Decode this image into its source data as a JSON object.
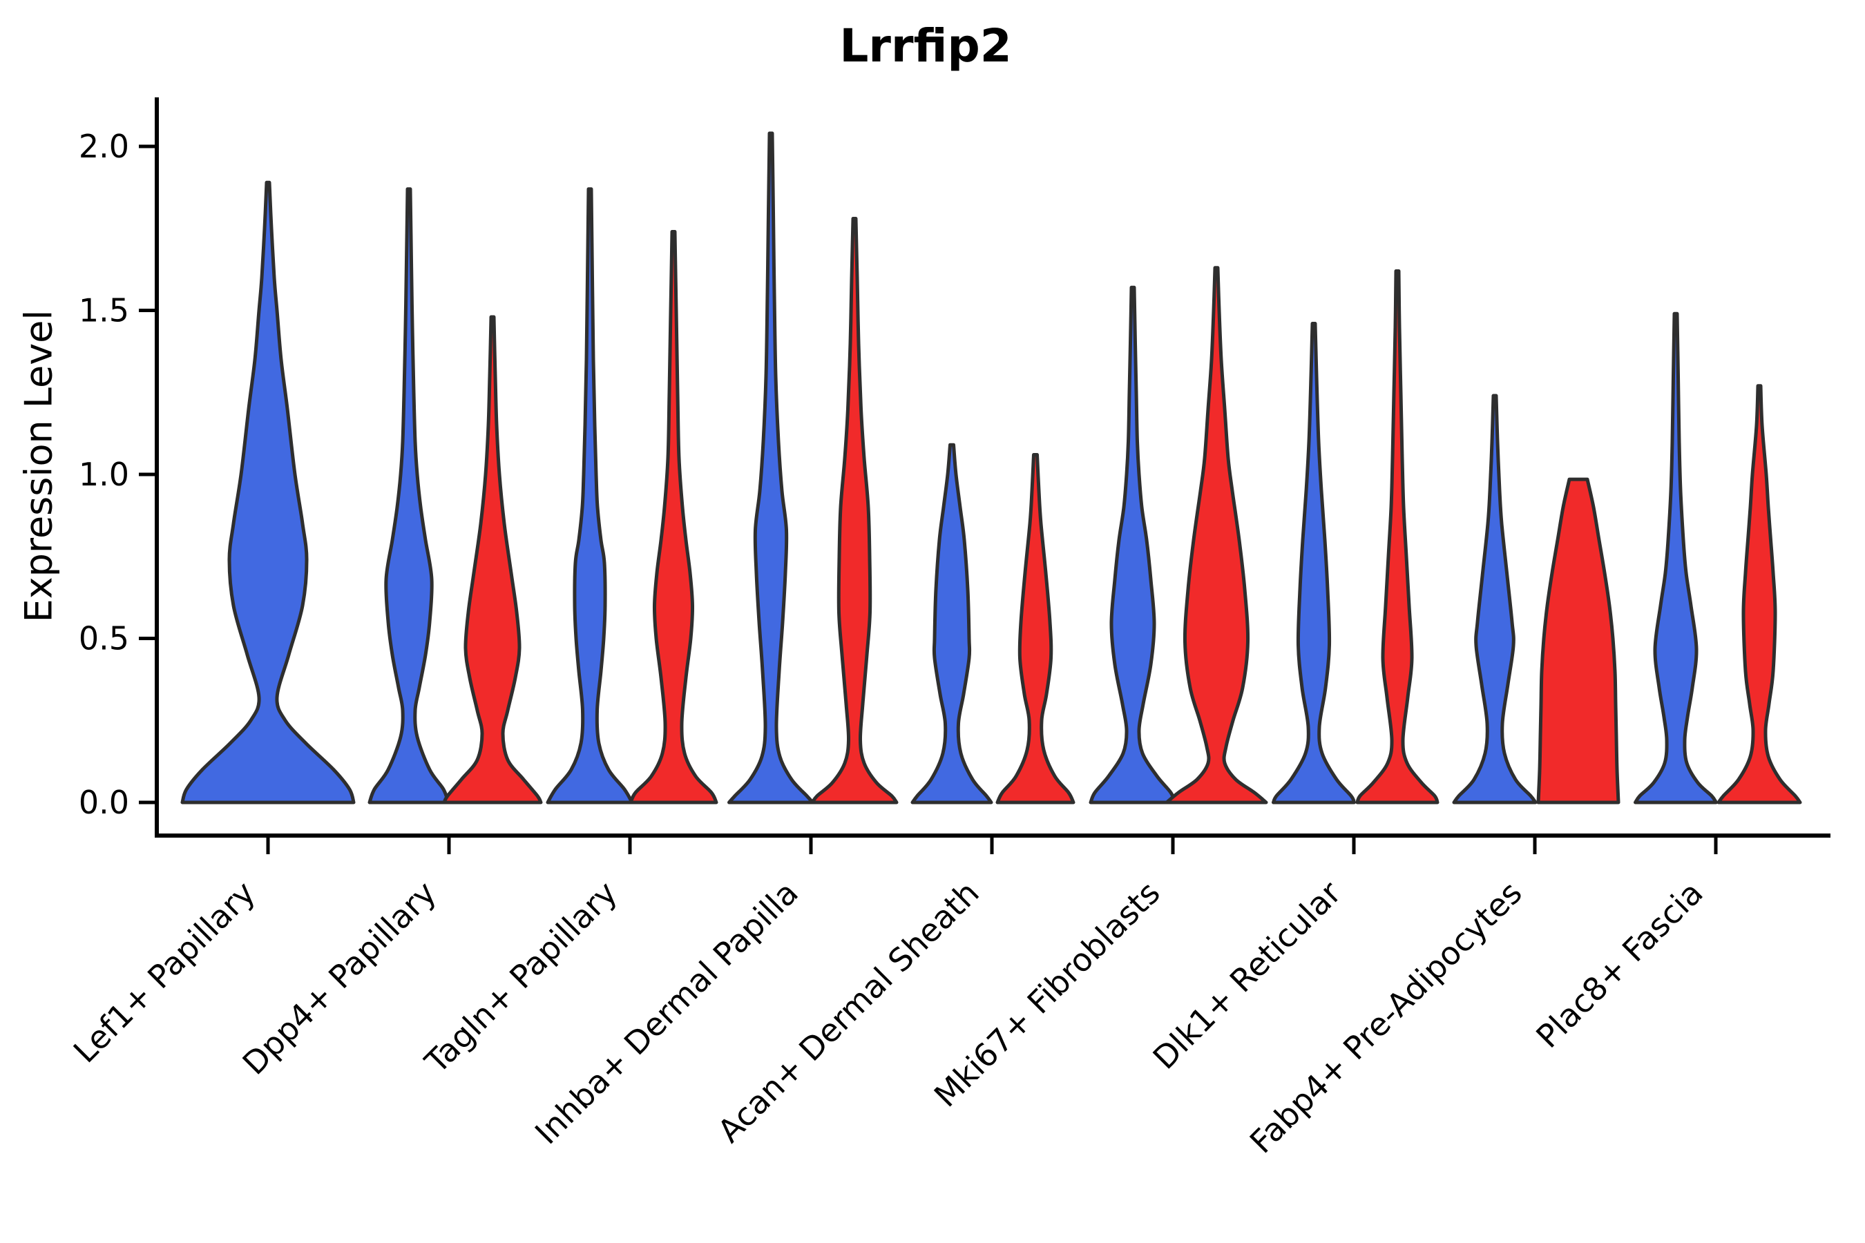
{
  "title": "Lrrfip2",
  "axes": {
    "ylabel": "Expression Level",
    "ytick_labels": [
      "0.0",
      "0.5",
      "1.0",
      "1.5",
      "2.0"
    ]
  },
  "colors": {
    "blue": "#4169E1",
    "red": "#F12A2A",
    "outline": "#2E2E2E",
    "axis": "#000000",
    "text": "#000000"
  },
  "chart_data": {
    "type": "violin",
    "title": "Lrrfip2",
    "xlabel": "",
    "ylabel": "Expression Level",
    "ylim": [
      -0.1,
      2.15
    ],
    "yticks": [
      0,
      0.5,
      1.0,
      1.5,
      2.0
    ],
    "ytick_labels": [
      "0.0",
      "0.5",
      "1.0",
      "1.5",
      "2.0"
    ],
    "grid": false,
    "legend": null,
    "categories": [
      "Lef1+ Papillary",
      "Dpp4+ Papillary",
      "Tagln+ Papillary",
      "Inhba+ Dermal Papilla",
      "Acan+ Dermal Sheath",
      "Mki67+ Fibroblasts",
      "Dlk1+ Reticular",
      "Fabp4+ Pre-Adipocytes",
      "Plac8+ Fascia"
    ],
    "hue_colors": {
      "blue": "#4169E1",
      "red": "#F12A2A"
    },
    "violins": [
      {
        "category_index": 0,
        "hue": "blue",
        "peak": 1.89,
        "flat_top": false,
        "profile": [
          [
            0,
            124
          ],
          [
            0.04,
            118
          ],
          [
            0.1,
            95
          ],
          [
            0.18,
            55
          ],
          [
            0.25,
            25
          ],
          [
            0.32,
            13
          ],
          [
            0.45,
            30
          ],
          [
            0.6,
            50
          ],
          [
            0.74,
            56
          ],
          [
            0.85,
            50
          ],
          [
            1.0,
            39
          ],
          [
            1.2,
            28
          ],
          [
            1.35,
            19
          ],
          [
            1.5,
            13
          ],
          [
            1.6,
            9
          ],
          [
            1.75,
            5
          ],
          [
            1.89,
            2
          ]
        ]
      },
      {
        "category_index": 1,
        "hue": "blue",
        "peak": 1.87,
        "flat_top": false,
        "profile": [
          [
            0,
            57
          ],
          [
            0.04,
            50
          ],
          [
            0.1,
            30
          ],
          [
            0.2,
            12
          ],
          [
            0.28,
            9
          ],
          [
            0.35,
            15
          ],
          [
            0.45,
            24
          ],
          [
            0.55,
            30
          ],
          [
            0.68,
            33
          ],
          [
            0.8,
            24
          ],
          [
            0.9,
            17
          ],
          [
            1.0,
            12
          ],
          [
            1.1,
            9
          ],
          [
            1.25,
            7
          ],
          [
            1.45,
            5
          ],
          [
            1.65,
            3.5
          ],
          [
            1.87,
            2
          ]
        ]
      },
      {
        "category_index": 1,
        "hue": "red",
        "peak": 1.48,
        "flat_top": false,
        "profile": [
          [
            0,
            70
          ],
          [
            0.02,
            65
          ],
          [
            0.07,
            45
          ],
          [
            0.13,
            22
          ],
          [
            0.21,
            15
          ],
          [
            0.28,
            22
          ],
          [
            0.38,
            33
          ],
          [
            0.47,
            39
          ],
          [
            0.58,
            35
          ],
          [
            0.7,
            27
          ],
          [
            0.85,
            17
          ],
          [
            1.0,
            10
          ],
          [
            1.15,
            6
          ],
          [
            1.3,
            4
          ],
          [
            1.48,
            2
          ]
        ]
      },
      {
        "category_index": 2,
        "hue": "blue",
        "peak": 1.87,
        "flat_top": false,
        "profile": [
          [
            0,
            61
          ],
          [
            0.04,
            50
          ],
          [
            0.1,
            27
          ],
          [
            0.18,
            13
          ],
          [
            0.28,
            10.5
          ],
          [
            0.4,
            16
          ],
          [
            0.5,
            20
          ],
          [
            0.6,
            22
          ],
          [
            0.73,
            21
          ],
          [
            0.8,
            16
          ],
          [
            0.9,
            11
          ],
          [
            1.0,
            9
          ],
          [
            1.15,
            7
          ],
          [
            1.35,
            5
          ],
          [
            1.6,
            3.5
          ],
          [
            1.87,
            2
          ]
        ]
      },
      {
        "category_index": 2,
        "hue": "red",
        "peak": 1.74,
        "flat_top": false,
        "profile": [
          [
            0,
            62
          ],
          [
            0.03,
            55
          ],
          [
            0.08,
            32
          ],
          [
            0.15,
            16
          ],
          [
            0.24,
            12
          ],
          [
            0.38,
            18
          ],
          [
            0.5,
            25
          ],
          [
            0.6,
            27.5
          ],
          [
            0.7,
            24
          ],
          [
            0.8,
            18
          ],
          [
            0.9,
            13
          ],
          [
            1.05,
            8
          ],
          [
            1.25,
            6
          ],
          [
            1.5,
            4
          ],
          [
            1.74,
            2
          ]
        ]
      },
      {
        "category_index": 3,
        "hue": "blue",
        "peak": 2.04,
        "flat_top": false,
        "profile": [
          [
            0,
            60.5
          ],
          [
            0.02,
            52
          ],
          [
            0.07,
            30
          ],
          [
            0.14,
            13
          ],
          [
            0.23,
            8
          ],
          [
            0.4,
            12
          ],
          [
            0.55,
            17
          ],
          [
            0.7,
            21
          ],
          [
            0.83,
            22.5
          ],
          [
            0.95,
            16
          ],
          [
            1.1,
            11
          ],
          [
            1.3,
            7
          ],
          [
            1.55,
            5
          ],
          [
            1.8,
            3.5
          ],
          [
            2.04,
            2
          ]
        ]
      },
      {
        "category_index": 3,
        "hue": "red",
        "peak": 1.78,
        "flat_top": false,
        "profile": [
          [
            0,
            61
          ],
          [
            0.02,
            54
          ],
          [
            0.06,
            32
          ],
          [
            0.12,
            14
          ],
          [
            0.19,
            8.5
          ],
          [
            0.3,
            12
          ],
          [
            0.45,
            18
          ],
          [
            0.58,
            22.5
          ],
          [
            0.75,
            22
          ],
          [
            0.9,
            20
          ],
          [
            1.05,
            14
          ],
          [
            1.2,
            9.5
          ],
          [
            1.4,
            6
          ],
          [
            1.6,
            4
          ],
          [
            1.78,
            2
          ]
        ]
      },
      {
        "category_index": 4,
        "hue": "blue",
        "peak": 1.09,
        "flat_top": false,
        "profile": [
          [
            0,
            57
          ],
          [
            0.02,
            50
          ],
          [
            0.07,
            30
          ],
          [
            0.15,
            13
          ],
          [
            0.24,
            9.5
          ],
          [
            0.33,
            17
          ],
          [
            0.44,
            25
          ],
          [
            0.5,
            25
          ],
          [
            0.65,
            23
          ],
          [
            0.8,
            18
          ],
          [
            0.9,
            12
          ],
          [
            1.0,
            6
          ],
          [
            1.09,
            2.5
          ]
        ]
      },
      {
        "category_index": 4,
        "hue": "red",
        "peak": 1.06,
        "flat_top": false,
        "profile": [
          [
            0,
            55
          ],
          [
            0.03,
            48
          ],
          [
            0.08,
            28
          ],
          [
            0.16,
            12
          ],
          [
            0.25,
            9
          ],
          [
            0.33,
            16
          ],
          [
            0.44,
            22.5
          ],
          [
            0.55,
            21
          ],
          [
            0.7,
            15
          ],
          [
            0.85,
            8
          ],
          [
            0.95,
            5
          ],
          [
            1.06,
            2.5
          ]
        ]
      },
      {
        "category_index": 5,
        "hue": "blue",
        "peak": 1.57,
        "flat_top": false,
        "profile": [
          [
            0,
            61
          ],
          [
            0.03,
            55
          ],
          [
            0.08,
            35
          ],
          [
            0.15,
            14
          ],
          [
            0.22,
            9
          ],
          [
            0.3,
            15
          ],
          [
            0.42,
            26
          ],
          [
            0.545,
            31
          ],
          [
            0.68,
            26
          ],
          [
            0.8,
            20
          ],
          [
            0.9,
            13
          ],
          [
            1.0,
            9
          ],
          [
            1.1,
            6.5
          ],
          [
            1.25,
            5
          ],
          [
            1.4,
            3.5
          ],
          [
            1.57,
            2
          ]
        ]
      },
      {
        "category_index": 5,
        "hue": "red",
        "peak": 1.63,
        "flat_top": false,
        "profile": [
          [
            0,
            72
          ],
          [
            0.03,
            55
          ],
          [
            0.07,
            28
          ],
          [
            0.12,
            12
          ],
          [
            0.17,
            14
          ],
          [
            0.25,
            24
          ],
          [
            0.35,
            38
          ],
          [
            0.49,
            45.5
          ],
          [
            0.65,
            41
          ],
          [
            0.8,
            33
          ],
          [
            0.95,
            23
          ],
          [
            1.05,
            17
          ],
          [
            1.2,
            12
          ],
          [
            1.35,
            7
          ],
          [
            1.5,
            4
          ],
          [
            1.63,
            2
          ]
        ]
      },
      {
        "category_index": 6,
        "hue": "blue",
        "peak": 1.46,
        "flat_top": false,
        "profile": [
          [
            0,
            58.5
          ],
          [
            0.02,
            54
          ],
          [
            0.07,
            33
          ],
          [
            0.15,
            12
          ],
          [
            0.23,
            8
          ],
          [
            0.35,
            17
          ],
          [
            0.48,
            22.5
          ],
          [
            0.65,
            20
          ],
          [
            0.8,
            16
          ],
          [
            0.95,
            11
          ],
          [
            1.1,
            7
          ],
          [
            1.3,
            4
          ],
          [
            1.46,
            2
          ]
        ]
      },
      {
        "category_index": 6,
        "hue": "red",
        "peak": 1.62,
        "flat_top": false,
        "profile": [
          [
            0,
            58
          ],
          [
            0.02,
            54
          ],
          [
            0.06,
            35
          ],
          [
            0.12,
            14
          ],
          [
            0.19,
            8
          ],
          [
            0.32,
            15
          ],
          [
            0.44,
            21
          ],
          [
            0.6,
            17
          ],
          [
            0.75,
            13
          ],
          [
            0.9,
            9
          ],
          [
            1.05,
            7
          ],
          [
            1.25,
            5
          ],
          [
            1.45,
            3
          ],
          [
            1.62,
            2
          ]
        ]
      },
      {
        "category_index": 7,
        "hue": "blue",
        "peak": 1.24,
        "flat_top": false,
        "profile": [
          [
            0,
            59
          ],
          [
            0.02,
            52
          ],
          [
            0.07,
            30
          ],
          [
            0.15,
            14
          ],
          [
            0.24,
            11
          ],
          [
            0.36,
            19
          ],
          [
            0.478,
            27
          ],
          [
            0.55,
            25
          ],
          [
            0.7,
            17.5
          ],
          [
            0.85,
            10
          ],
          [
            0.95,
            7
          ],
          [
            1.1,
            4
          ],
          [
            1.24,
            2
          ]
        ]
      },
      {
        "category_index": 7,
        "hue": "red",
        "peak": 0.985,
        "flat_top": true,
        "profile": [
          [
            0,
            58
          ],
          [
            0.1,
            56
          ],
          [
            0.2,
            55
          ],
          [
            0.3,
            54
          ],
          [
            0.4,
            53
          ],
          [
            0.5,
            50
          ],
          [
            0.6,
            45
          ],
          [
            0.7,
            38
          ],
          [
            0.8,
            30
          ],
          [
            0.9,
            22
          ],
          [
            0.985,
            13
          ]
        ]
      },
      {
        "category_index": 8,
        "hue": "blue",
        "peak": 1.49,
        "flat_top": false,
        "profile": [
          [
            0,
            58.5
          ],
          [
            0.02,
            52
          ],
          [
            0.06,
            32
          ],
          [
            0.12,
            16
          ],
          [
            0.19,
            13
          ],
          [
            0.26,
            17
          ],
          [
            0.35,
            24
          ],
          [
            0.467,
            30
          ],
          [
            0.6,
            22
          ],
          [
            0.7,
            15
          ],
          [
            0.8,
            11
          ],
          [
            0.95,
            7
          ],
          [
            1.1,
            5
          ],
          [
            1.3,
            3.5
          ],
          [
            1.49,
            2
          ]
        ]
      },
      {
        "category_index": 8,
        "hue": "red",
        "peak": 1.27,
        "flat_top": false,
        "profile": [
          [
            0,
            59
          ],
          [
            0.02,
            52
          ],
          [
            0.07,
            30
          ],
          [
            0.14,
            13
          ],
          [
            0.22,
            9
          ],
          [
            0.3,
            14
          ],
          [
            0.4,
            20
          ],
          [
            0.577,
            23
          ],
          [
            0.7,
            20
          ],
          [
            0.8,
            16.5
          ],
          [
            0.9,
            13
          ],
          [
            1.0,
            10
          ],
          [
            1.15,
            4
          ],
          [
            1.27,
            2
          ]
        ]
      }
    ]
  }
}
